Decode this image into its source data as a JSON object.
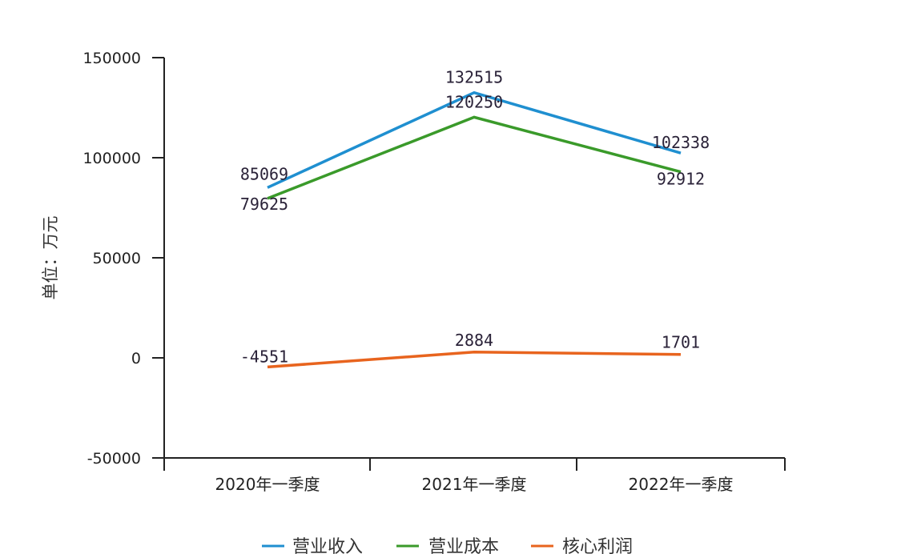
{
  "chart_data": {
    "type": "line",
    "title": "",
    "xlabel": "",
    "ylabel": "单位：万元",
    "categories": [
      "2020年一季度",
      "2021年一季度",
      "2022年一季度"
    ],
    "series": [
      {
        "name": "营业收入",
        "color": "#1f8fd0",
        "values": [
          85069,
          132515,
          102338
        ]
      },
      {
        "name": "营业成本",
        "color": "#3a9a2a",
        "values": [
          79625,
          120250,
          92912
        ]
      },
      {
        "name": "核心利润",
        "color": "#e8641e",
        "values": [
          -4551,
          2884,
          1701
        ]
      }
    ],
    "ylim": [
      -50000,
      150000
    ],
    "yticks": [
      150000,
      100000,
      50000,
      0,
      -50000
    ],
    "ytick_labels": [
      "150000",
      "100000",
      "50000",
      "0",
      "-50000"
    ],
    "grid": false,
    "legend_position": "bottom"
  }
}
